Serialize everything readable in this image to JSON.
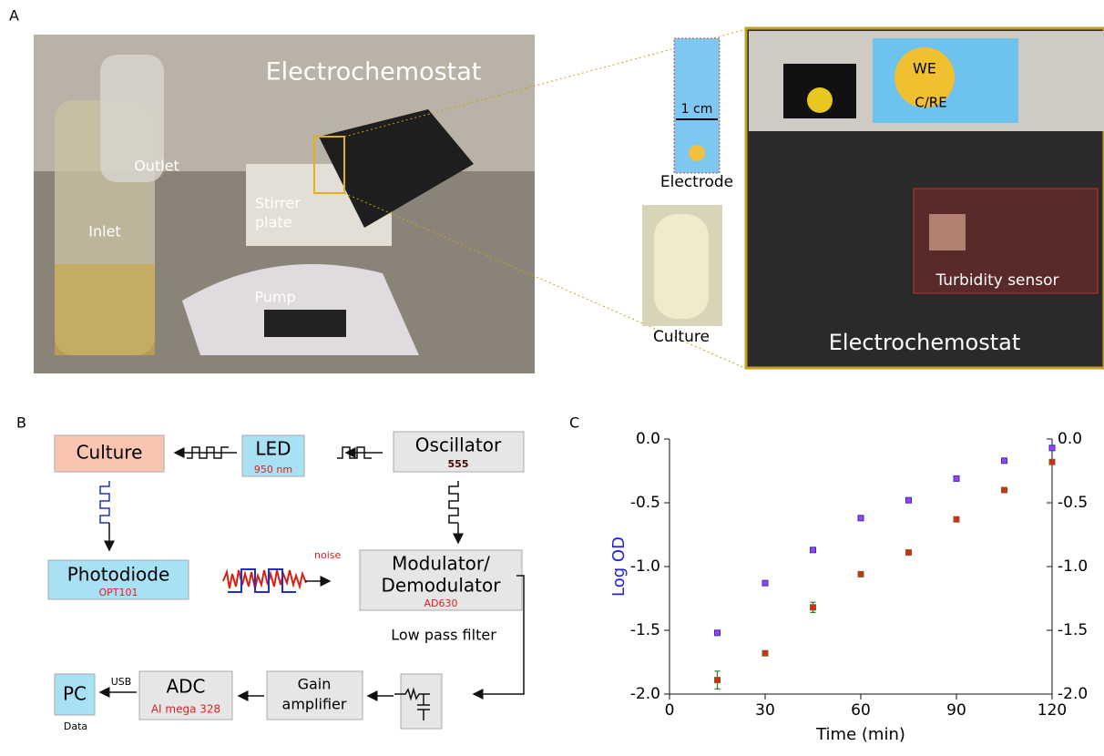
{
  "panel_labels": [
    "A",
    "B",
    "C"
  ],
  "panel_a": {
    "setup_photo": {
      "title": "Electrochemostat",
      "outlet": "Outlet",
      "inlet": "Inlet",
      "stirrer": [
        "Stirrer",
        "plate"
      ],
      "pump": "Pump"
    },
    "electrode": {
      "scale": "1 cm",
      "label": "Electrode"
    },
    "culture": "Culture",
    "device_photo": {
      "we": "WE",
      "cre": "C/RE",
      "sensor": "Turbidity sensor",
      "title": "Electrochemostat"
    }
  },
  "panel_b": {
    "nodes": {
      "culture": "Culture",
      "led": {
        "label": "LED",
        "part": "950 nm"
      },
      "oscillator": {
        "label": "Oscillator",
        "part": "555"
      },
      "photodiode": {
        "label": "Photodiode",
        "part": "OPT101"
      },
      "noise": "noise",
      "modulator": {
        "label": [
          "Modulator/",
          "Demodulator"
        ],
        "part": "AD630"
      },
      "filter": "Low pass filter",
      "gain": [
        "Gain",
        "amplifier"
      ],
      "adc": {
        "label": "ADC",
        "part": "AI mega 328"
      },
      "pc": {
        "label": "PC",
        "note": "Data"
      },
      "usb": "USB"
    }
  },
  "chart_data": {
    "type": "scatter",
    "x_label": "Time (min)",
    "y_label": "Log OD",
    "xlim": [
      0,
      120
    ],
    "xticks": [
      0,
      30,
      60,
      90,
      120
    ],
    "ylim": [
      -2,
      0
    ],
    "yticks": [
      {
        "value": -2,
        "label": "-2.0"
      },
      {
        "value": -1.5,
        "label": "-1.5"
      },
      {
        "value": -1,
        "label": "-1.0"
      },
      {
        "value": -0.5,
        "label": "-0.5"
      },
      {
        "value": 0,
        "label": "0.0"
      }
    ],
    "y2lim": [
      -2,
      0
    ],
    "y2ticks": [
      {
        "value": -2,
        "label": "-2.0"
      },
      {
        "value": -1.5,
        "label": "-1.5"
      },
      {
        "value": -1,
        "label": "-1.0"
      },
      {
        "value": -0.5,
        "label": "-0.5"
      },
      {
        "value": 0,
        "label": "0.0"
      }
    ],
    "x": [
      15,
      30,
      45,
      60,
      75,
      90,
      105,
      120
    ],
    "series": [
      {
        "color": "#a040f0",
        "values": [
          -1.52,
          -1.13,
          -0.87,
          -0.62,
          -0.48,
          -0.31,
          -0.17,
          -0.07
        ]
      },
      {
        "color": "#d8281c",
        "axis": "y2",
        "values": [
          -1.89,
          -1.68,
          -1.32,
          -1.06,
          -0.89,
          -0.63,
          -0.4,
          -0.18
        ],
        "errors": [
          0.07,
          0.01,
          0.04,
          0.01,
          0.01,
          0.01,
          0.01,
          0.01
        ]
      }
    ]
  }
}
